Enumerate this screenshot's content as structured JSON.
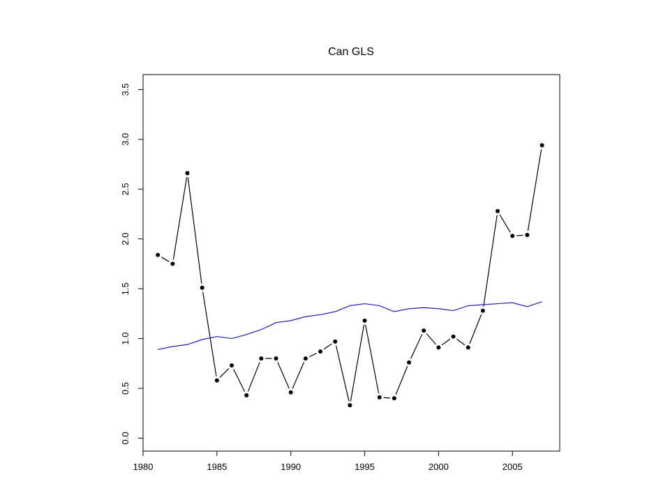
{
  "chart_data": {
    "type": "line",
    "title": "Can GLS",
    "xlabel": "",
    "ylabel": "",
    "xlim": [
      1980,
      2008.2
    ],
    "ylim": [
      -0.13,
      3.65
    ],
    "xticks": [
      1980,
      1985,
      1990,
      1995,
      2000,
      2005
    ],
    "yticks": [
      0.0,
      0.5,
      1.0,
      1.5,
      2.0,
      2.5,
      3.0,
      3.5
    ],
    "ytick_labels": [
      "0.0",
      "0.5",
      "1.0",
      "1.5",
      "2.0",
      "2.5",
      "3.0",
      "3.5"
    ],
    "grid": false,
    "colors": {
      "points_line": "#000000",
      "trend_line": "#1f1fa8"
    },
    "x": [
      1981,
      1982,
      1983,
      1984,
      1985,
      1986,
      1987,
      1988,
      1989,
      1990,
      1991,
      1992,
      1993,
      1994,
      1995,
      1996,
      1997,
      1998,
      1999,
      2000,
      2001,
      2002,
      2003,
      2004,
      2005,
      2006,
      2007
    ],
    "series": [
      {
        "style": "points-and-line",
        "color": "#000000",
        "values": [
          1.84,
          1.75,
          2.66,
          1.51,
          0.58,
          0.73,
          0.43,
          0.8,
          0.8,
          0.46,
          0.8,
          0.87,
          0.97,
          0.33,
          1.18,
          0.41,
          0.4,
          0.76,
          1.08,
          0.91,
          1.02,
          0.91,
          1.28,
          2.28,
          2.03,
          2.04,
          2.94
        ]
      },
      {
        "style": "line",
        "color": "#1f1fa8",
        "values": [
          0.89,
          0.92,
          0.94,
          0.99,
          1.02,
          1.0,
          1.04,
          1.09,
          1.16,
          1.18,
          1.22,
          1.24,
          1.27,
          1.33,
          1.35,
          1.33,
          1.27,
          1.3,
          1.31,
          1.3,
          1.28,
          1.33,
          1.34,
          1.35,
          1.36,
          1.32,
          1.37
        ]
      }
    ]
  }
}
